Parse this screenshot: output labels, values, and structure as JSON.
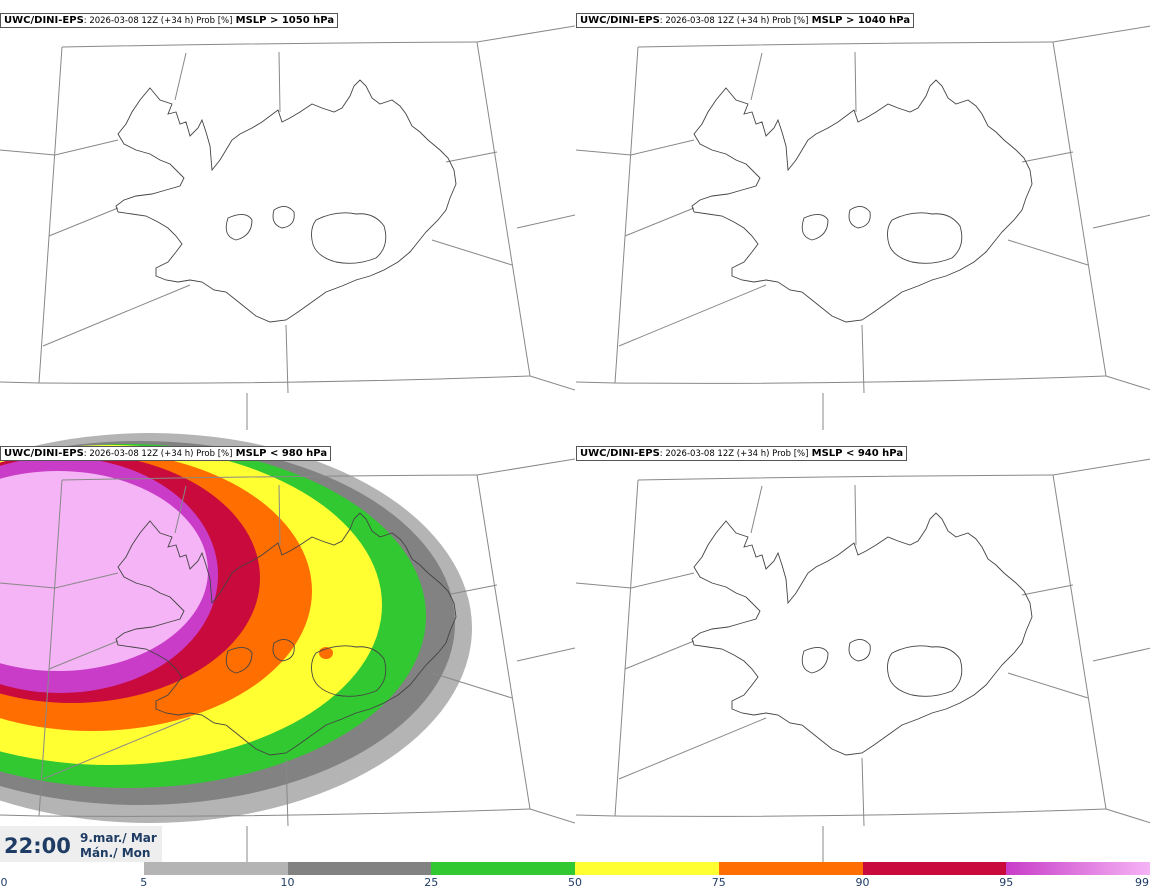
{
  "panels": [
    {
      "id": "tl",
      "model": "UWC/DINI-EPS",
      "meta": ": 2026-03-08 12Z (+34 h) Prob [%]",
      "param": "MSLP > 1050 hPa",
      "has_field": false
    },
    {
      "id": "tr",
      "model": "UWC/DINI-EPS",
      "meta": ": 2026-03-08 12Z (+34 h) Prob [%]",
      "param": "MSLP > 1040 hPa",
      "has_field": false
    },
    {
      "id": "bl",
      "model": "UWC/DINI-EPS",
      "meta": ": 2026-03-08 12Z (+34 h) Prob [%]",
      "param": "MSLP < 980 hPa",
      "has_field": true
    },
    {
      "id": "br",
      "model": "UWC/DINI-EPS",
      "meta": ": 2026-03-08 12Z (+34 h) Prob [%]",
      "param": "MSLP < 940 hPa",
      "has_field": false
    }
  ],
  "time": {
    "clock": "22:00",
    "date_line1": "9.mar./ Mar",
    "date_line2": "Mán./ Mon"
  },
  "colorbar": {
    "ticks": [
      "0",
      "5",
      "10",
      "25",
      "50",
      "75",
      "90",
      "95",
      "99"
    ],
    "segments": [
      {
        "from": 0,
        "to": 5,
        "color": "#ffffff"
      },
      {
        "from": 5,
        "to": 10,
        "color": "#b4b4b4"
      },
      {
        "from": 10,
        "to": 25,
        "color": "#828282"
      },
      {
        "from": 25,
        "to": 50,
        "color": "#32c832"
      },
      {
        "from": 50,
        "to": 75,
        "color": "#ffff32"
      },
      {
        "from": 75,
        "to": 90,
        "color": "#ff6e00"
      },
      {
        "from": 90,
        "to": 95,
        "color": "#c80a3c"
      },
      {
        "from": 95,
        "to": 99,
        "color": "#c83cc8",
        "color_end": "#f5b4f5"
      }
    ]
  }
}
